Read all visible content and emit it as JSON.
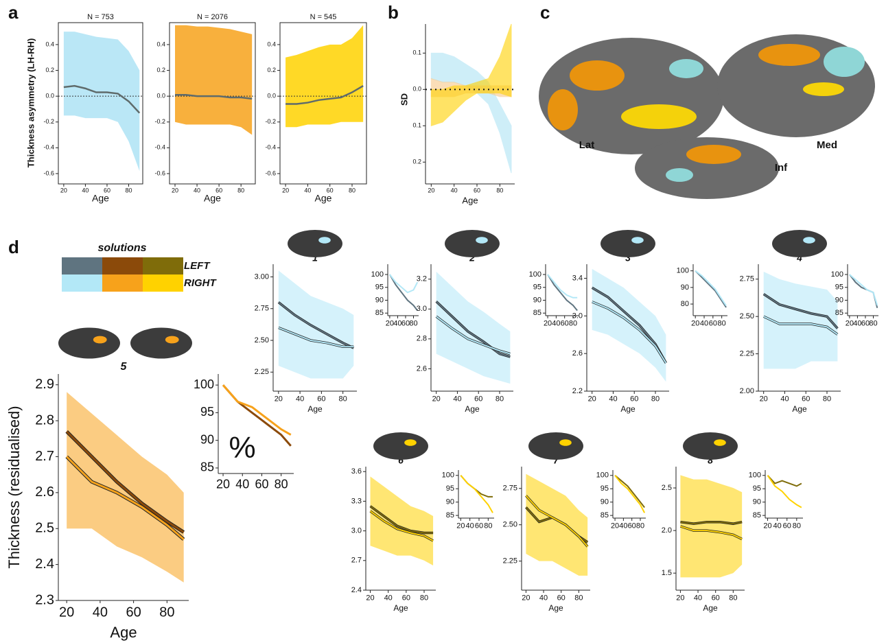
{
  "a": {
    "label": "a",
    "ylabel": "Thickness asymmetry (LH-RH)",
    "xlabel": "Age",
    "mean_color": "#5f6b6b",
    "xlim": [
      15,
      93
    ],
    "ylim": [
      -0.68,
      0.57
    ],
    "xticks": [
      20,
      40,
      60,
      80
    ],
    "yticks": [
      -0.6,
      -0.4,
      -0.2,
      {
        "value": 0,
        "label": "0.0"
      },
      0.2,
      0.4
    ],
    "x": [
      20,
      30,
      40,
      50,
      60,
      70,
      80,
      90
    ],
    "plots": [
      {
        "title": "N = 753",
        "color": "#aee3f5",
        "mean": [
          0.07,
          0.08,
          0.06,
          0.03,
          0.03,
          0.02,
          -0.04,
          -0.13
        ],
        "upper": [
          0.5,
          0.5,
          0.48,
          0.46,
          0.45,
          0.44,
          0.35,
          0.2
        ],
        "lower": [
          -0.15,
          -0.15,
          -0.17,
          -0.17,
          -0.17,
          -0.2,
          -0.35,
          -0.58
        ]
      },
      {
        "title": "N = 2076",
        "color": "#f7a21b",
        "mean": [
          0.01,
          0.01,
          0,
          0,
          0,
          -0.01,
          -0.01,
          -0.02
        ],
        "upper": [
          0.55,
          0.55,
          0.54,
          0.54,
          0.53,
          0.52,
          0.5,
          0.48
        ],
        "lower": [
          -0.2,
          -0.22,
          -0.22,
          -0.22,
          -0.22,
          -0.22,
          -0.24,
          -0.3
        ]
      },
      {
        "title": "N = 545",
        "color": "#ffd200",
        "mean": [
          -0.06,
          -0.06,
          -0.05,
          -0.03,
          -0.02,
          -0.01,
          0.03,
          0.08
        ],
        "upper": [
          0.3,
          0.32,
          0.35,
          0.38,
          0.4,
          0.4,
          0.45,
          0.55
        ],
        "lower": [
          -0.24,
          -0.24,
          -0.22,
          -0.22,
          -0.22,
          -0.2,
          -0.2,
          -0.2
        ]
      }
    ]
  },
  "b": {
    "label": "b",
    "ylabel": "SD",
    "xlabel": "Age",
    "xlim": [
      15,
      93
    ],
    "ylim": [
      -0.26,
      0.18
    ],
    "xticks": [
      20,
      40,
      60,
      80
    ],
    "yticks": [
      0.1,
      {
        "value": 0,
        "label": "0.0"
      },
      {
        "value": -0.1,
        "label": "0.1"
      },
      {
        "value": -0.2,
        "label": "0.2"
      }
    ],
    "x": [
      20,
      30,
      40,
      50,
      60,
      70,
      80,
      90
    ],
    "bands": [
      {
        "color": "#aee3f5",
        "upper": [
          0.1,
          0.1,
          0.09,
          0.07,
          0.05,
          0.02,
          -0.04,
          -0.1
        ],
        "lower": [
          0.03,
          0.02,
          0.02,
          0.01,
          -0.01,
          -0.04,
          -0.12,
          -0.23
        ]
      },
      {
        "color": "#f7c98a",
        "upper": [
          0.03,
          0.02,
          0.02,
          0.01,
          0.01,
          0.01,
          0.01,
          0.01
        ],
        "lower": [
          -0.02,
          -0.02,
          -0.02,
          -0.01,
          -0.01,
          -0.01,
          -0.02,
          -0.02
        ]
      },
      {
        "color": "#ffd200",
        "upper": [
          0,
          0,
          0.01,
          0.01,
          0.02,
          0.03,
          0.09,
          0.18
        ],
        "lower": [
          -0.1,
          -0.09,
          -0.06,
          -0.03,
          -0.01,
          -0.01,
          -0.01,
          -0.02
        ]
      }
    ]
  },
  "c": {
    "label": "c",
    "views": [
      "Lat",
      "Med",
      "Inf"
    ]
  },
  "d": {
    "label": "d",
    "legend": {
      "title": "solutions",
      "rows": [
        "LEFT",
        "RIGHT"
      ],
      "colors": [
        [
          "#5f7480",
          "#8b4a0a",
          "#7f6c0a"
        ],
        [
          "#b3e8f7",
          "#f7a21b",
          "#ffd200"
        ]
      ]
    },
    "xlabel": "Age",
    "ylabel": "Thickness (residualised)",
    "inset_symbol": "%",
    "x": [
      20,
      35,
      50,
      65,
      80,
      90
    ],
    "xlim": [
      15,
      93
    ],
    "xticks": [
      20,
      40,
      60,
      80
    ],
    "plots": [
      {
        "name": "1",
        "solution": 0,
        "ylim": [
          2.1,
          3.1
        ],
        "yticks": [
          2.25,
          {
            "value": 2.5,
            "label": "2.50"
          },
          2.75,
          {
            "value": 3,
            "label": "3.00"
          }
        ],
        "lower": [
          2.3,
          2.25,
          2.2,
          2.2,
          2.2,
          2.3
        ],
        "upper": [
          3.05,
          2.95,
          2.85,
          2.8,
          2.75,
          2.7
        ],
        "left": [
          2.8,
          2.7,
          2.62,
          2.55,
          2.48,
          2.44
        ],
        "right": [
          2.6,
          2.55,
          2.5,
          2.48,
          2.45,
          2.45
        ],
        "inset": {
          "ylim": [
            84,
            104
          ],
          "yticks": [
            85,
            90,
            95,
            100
          ],
          "left": [
            100,
            96,
            93,
            90,
            88,
            86
          ],
          "right": [
            100,
            97,
            95,
            93,
            94,
            97
          ]
        }
      },
      {
        "name": "2",
        "solution": 0,
        "ylim": [
          2.45,
          3.3
        ],
        "yticks": [
          2.6,
          2.8,
          {
            "value": 3,
            "label": "3.0"
          },
          3.2
        ],
        "lower": [
          2.7,
          2.65,
          2.6,
          2.55,
          2.52,
          2.5
        ],
        "upper": [
          3.25,
          3.15,
          3.05,
          2.98,
          2.9,
          2.85
        ],
        "left": [
          3.05,
          2.95,
          2.85,
          2.78,
          2.7,
          2.68
        ],
        "right": [
          2.95,
          2.87,
          2.8,
          2.76,
          2.72,
          2.7
        ],
        "inset": {
          "ylim": [
            84,
            104
          ],
          "yticks": [
            85,
            90,
            95,
            100
          ],
          "left": [
            100,
            96,
            93,
            90,
            88,
            86
          ],
          "right": [
            100,
            97,
            94,
            92,
            91,
            91
          ]
        }
      },
      {
        "name": "3",
        "solution": 0,
        "ylim": [
          2.2,
          3.55
        ],
        "yticks": [
          2.2,
          2.6,
          {
            "value": 3,
            "label": "3.0"
          },
          3.4
        ],
        "lower": [
          2.85,
          2.8,
          2.7,
          2.6,
          2.45,
          2.3
        ],
        "upper": [
          3.5,
          3.4,
          3.3,
          3.15,
          3.0,
          2.8
        ],
        "left": [
          3.3,
          3.2,
          3.05,
          2.9,
          2.7,
          2.5
        ],
        "right": [
          3.15,
          3.08,
          2.98,
          2.85,
          2.68,
          2.5
        ],
        "inset": {
          "ylim": [
            73,
            104
          ],
          "yticks": [
            80,
            90,
            100
          ],
          "left": [
            100,
            96,
            92,
            88,
            82,
            78
          ],
          "right": [
            100,
            97,
            93,
            89,
            83,
            79
          ]
        }
      },
      {
        "name": "4",
        "solution": 0,
        "ylim": [
          2.0,
          2.85
        ],
        "yticks": [
          {
            "value": 2,
            "label": "2.00"
          },
          2.25,
          {
            "value": 2.5,
            "label": "2.50"
          },
          2.75
        ],
        "lower": [
          2.15,
          2.15,
          2.15,
          2.2,
          2.2,
          2.2
        ],
        "upper": [
          2.8,
          2.75,
          2.72,
          2.7,
          2.68,
          2.6
        ],
        "left": [
          2.65,
          2.58,
          2.55,
          2.52,
          2.5,
          2.42
        ],
        "right": [
          2.5,
          2.45,
          2.45,
          2.45,
          2.43,
          2.38
        ],
        "inset": {
          "ylim": [
            84,
            104
          ],
          "yticks": [
            85,
            90,
            95,
            100
          ],
          "left": [
            100,
            97,
            95,
            94,
            93,
            87
          ],
          "right": [
            100,
            98,
            96,
            94,
            93,
            88
          ]
        }
      },
      {
        "name": "5",
        "solution": 1,
        "ylim": [
          2.3,
          2.93
        ],
        "yticks": [
          2.3,
          2.4,
          2.5,
          2.6,
          2.7,
          2.8,
          2.9
        ],
        "lower": [
          2.5,
          2.5,
          2.45,
          2.42,
          2.38,
          2.35
        ],
        "upper": [
          2.88,
          2.82,
          2.76,
          2.7,
          2.65,
          2.6
        ],
        "left": [
          2.77,
          2.7,
          2.63,
          2.57,
          2.52,
          2.49
        ],
        "right": [
          2.7,
          2.63,
          2.6,
          2.56,
          2.51,
          2.47
        ],
        "inset": {
          "ylim": [
            84,
            102
          ],
          "yticks": [
            85,
            90,
            95,
            100
          ],
          "left": [
            100,
            97,
            95,
            93,
            91,
            89
          ],
          "right": [
            100,
            97,
            96,
            94,
            92,
            91
          ]
        }
      },
      {
        "name": "6",
        "solution": 2,
        "ylim": [
          2.4,
          3.65
        ],
        "yticks": [
          2.4,
          2.7,
          {
            "value": 3,
            "label": "3.0"
          },
          3.3,
          3.6
        ],
        "lower": [
          2.85,
          2.8,
          2.75,
          2.75,
          2.7,
          2.65
        ],
        "upper": [
          3.55,
          3.45,
          3.35,
          3.25,
          3.2,
          3.15
        ],
        "left": [
          3.25,
          3.15,
          3.05,
          3.0,
          2.98,
          2.98
        ],
        "right": [
          3.2,
          3.1,
          3.02,
          2.98,
          2.95,
          2.9
        ],
        "inset": {
          "ylim": [
            84,
            102
          ],
          "yticks": [
            85,
            90,
            95,
            100
          ],
          "left": [
            100,
            97,
            95,
            93,
            92,
            92
          ],
          "right": [
            100,
            97,
            95,
            92,
            89,
            86
          ]
        }
      },
      {
        "name": "7",
        "solution": 2,
        "ylim": [
          2.05,
          2.9
        ],
        "yticks": [
          2.25,
          {
            "value": 2.5,
            "label": "2.50"
          },
          2.75
        ],
        "lower": [
          2.3,
          2.25,
          2.25,
          2.2,
          2.15,
          2.15
        ],
        "upper": [
          2.85,
          2.8,
          2.75,
          2.7,
          2.6,
          2.55
        ],
        "left": [
          2.62,
          2.52,
          2.55,
          2.5,
          2.42,
          2.38
        ],
        "right": [
          2.7,
          2.6,
          2.55,
          2.5,
          2.42,
          2.35
        ],
        "inset": {
          "ylim": [
            84,
            102
          ],
          "yticks": [
            85,
            90,
            95,
            100
          ],
          "left": [
            100,
            98,
            96,
            93,
            90,
            88
          ],
          "right": [
            100,
            97,
            95,
            92,
            89,
            86
          ]
        }
      },
      {
        "name": "8",
        "solution": 2,
        "ylim": [
          1.3,
          2.75
        ],
        "yticks": [
          1.5,
          {
            "value": 2,
            "label": "2.0"
          },
          2.5
        ],
        "lower": [
          1.45,
          1.45,
          1.45,
          1.45,
          1.5,
          1.6
        ],
        "upper": [
          2.65,
          2.6,
          2.6,
          2.55,
          2.5,
          2.45
        ],
        "left": [
          2.1,
          2.08,
          2.1,
          2.1,
          2.08,
          2.1
        ],
        "right": [
          2.05,
          2.0,
          2.0,
          1.98,
          1.95,
          1.9
        ],
        "inset": {
          "ylim": [
            84,
            102
          ],
          "yticks": [
            85,
            90,
            95,
            100
          ],
          "left": [
            100,
            97,
            98,
            97,
            96,
            97
          ],
          "right": [
            100,
            96,
            94,
            91,
            89,
            88
          ]
        }
      }
    ]
  }
}
